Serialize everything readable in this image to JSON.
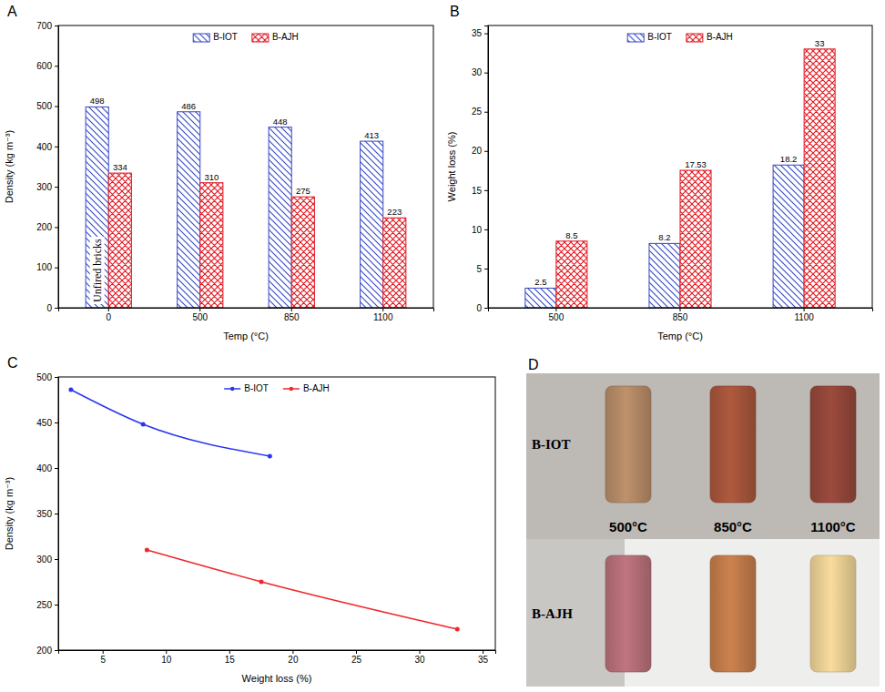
{
  "chart_data": [
    {
      "type": "bar",
      "panel": "A",
      "x_label": "Temp (°C)",
      "y_label": "Density (kg m⁻³)",
      "categories": [
        "0",
        "500",
        "850",
        "1100"
      ],
      "series": [
        {
          "name": "B-IOT",
          "color": "#3447c6",
          "values": [
            498,
            486,
            448,
            413
          ]
        },
        {
          "name": "B-AJH",
          "color": "#e3151e",
          "values": [
            334,
            310,
            275,
            223
          ]
        }
      ],
      "ylim": [
        0,
        700
      ],
      "yticks": [
        0,
        100,
        200,
        300,
        400,
        500,
        600,
        700
      ],
      "grid": false,
      "legend": "top",
      "data_labels": true,
      "annotations": [
        "Unfired bricks"
      ]
    },
    {
      "type": "bar",
      "panel": "B",
      "x_label": "Temp (°C)",
      "y_label": "Weight loss (%)",
      "categories": [
        "500",
        "850",
        "1100"
      ],
      "series": [
        {
          "name": "B-IOT",
          "color": "#3447c6",
          "values": [
            2.5,
            8.2,
            18.2
          ]
        },
        {
          "name": "B-AJH",
          "color": "#e3151e",
          "values": [
            8.5,
            17.53,
            33
          ]
        }
      ],
      "ylim": [
        0,
        36
      ],
      "yticks": [
        0,
        5,
        10,
        15,
        20,
        25,
        30,
        35
      ],
      "grid": false,
      "legend": "top",
      "data_labels": true
    },
    {
      "type": "line",
      "panel": "C",
      "x_label": "Weight loss (%)",
      "y_label": "Density (kg m⁻³)",
      "series": [
        {
          "name": "B-IOT",
          "color": "#2a35f0",
          "marker": "circle",
          "line_style": "solid",
          "x": [
            2.5,
            8.2,
            18.2
          ],
          "values": [
            486,
            448,
            413
          ]
        },
        {
          "name": "B-AJH",
          "color": "#f0262a",
          "marker": "circle",
          "line_style": "solid",
          "x": [
            8.5,
            17.53,
            33
          ],
          "values": [
            310,
            275,
            223
          ]
        }
      ],
      "xlim": [
        1.5,
        36
      ],
      "xticks": [
        5,
        10,
        15,
        20,
        25,
        30,
        35
      ],
      "ylim": [
        200,
        500
      ],
      "yticks": [
        200,
        250,
        300,
        350,
        400,
        450,
        500
      ],
      "grid": false,
      "legend": "top"
    }
  ],
  "photo_panel": {
    "panel": "D",
    "rows": [
      "B-IOT",
      "B-AJH"
    ],
    "columns": [
      "500°C",
      "850°C",
      "1100°C"
    ]
  }
}
